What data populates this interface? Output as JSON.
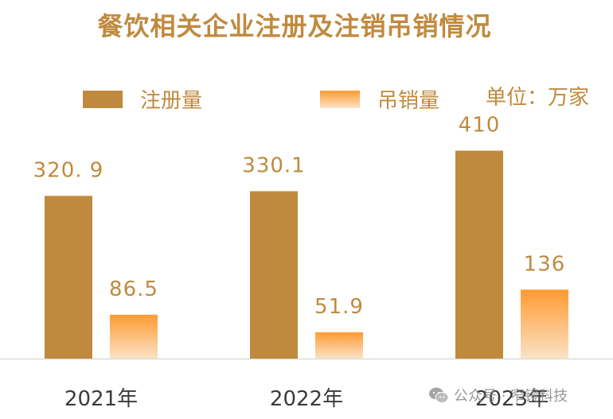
{
  "title": "餐饮相关企业注册及注销吊销情况",
  "unit": "单位：万家",
  "colors": {
    "registration": "#c08a3e",
    "revocation_top": "#ff9b32",
    "revocation_bottom": "#fbe2c6",
    "text": "#c08a3e"
  },
  "watermark": {
    "icon": "wechat-icon",
    "text": "公众号 · 窄镜科技"
  },
  "chart_data": {
    "type": "bar",
    "title": "餐饮相关企业注册及注销吊销情况",
    "categories": [
      "2021年",
      "2022年",
      "2023年"
    ],
    "series": [
      {
        "name": "注册量",
        "values": [
          320.9,
          330.1,
          410
        ],
        "labels": [
          "320. 9",
          "330.1",
          "410"
        ]
      },
      {
        "name": "吊销量",
        "values": [
          86.5,
          51.9,
          136
        ],
        "labels": [
          "86.5",
          "51.9",
          "136"
        ]
      }
    ],
    "xlabel": "",
    "ylabel": "",
    "ylim": [
      0,
      530
    ],
    "grid": false,
    "legend": "top"
  }
}
